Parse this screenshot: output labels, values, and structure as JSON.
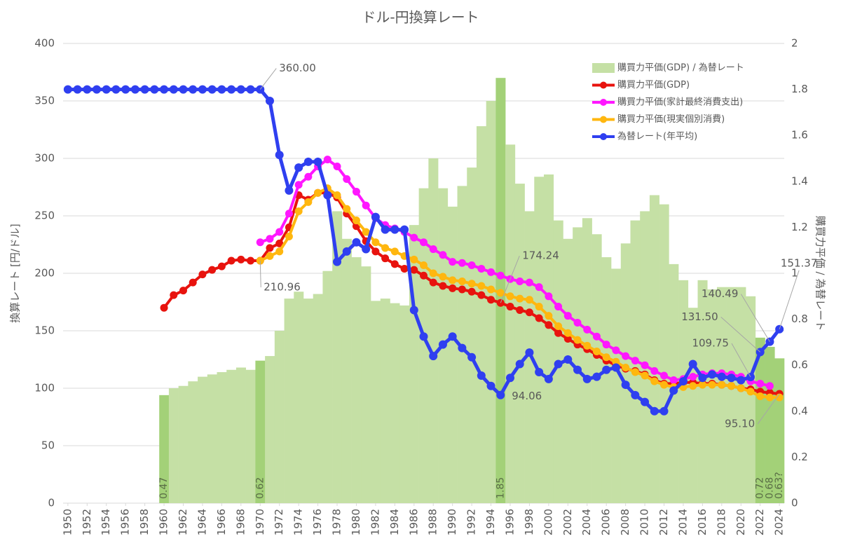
{
  "chart_data": {
    "type": "combo",
    "title": "ドル-円換算レート",
    "y_label": "換算レート [円/ドル]",
    "y2_label": "購買力平価 / 為替レート",
    "x": [
      1950,
      1951,
      1952,
      1953,
      1954,
      1955,
      1956,
      1957,
      1958,
      1959,
      1960,
      1961,
      1962,
      1963,
      1964,
      1965,
      1966,
      1967,
      1968,
      1969,
      1970,
      1971,
      1972,
      1973,
      1974,
      1975,
      1976,
      1977,
      1978,
      1979,
      1980,
      1981,
      1982,
      1983,
      1984,
      1985,
      1986,
      1987,
      1988,
      1989,
      1990,
      1991,
      1992,
      1993,
      1994,
      1995,
      1996,
      1997,
      1998,
      1999,
      2000,
      2001,
      2002,
      2003,
      2004,
      2005,
      2006,
      2007,
      2008,
      2009,
      2010,
      2011,
      2012,
      2013,
      2014,
      2015,
      2016,
      2017,
      2018,
      2019,
      2020,
      2021,
      2022,
      2023,
      2024
    ],
    "xlim": [
      1949.5,
      2024.5
    ],
    "xticks": [
      1950,
      1952,
      1954,
      1956,
      1958,
      1960,
      1962,
      1964,
      1966,
      1968,
      1970,
      1972,
      1974,
      1976,
      1978,
      1980,
      1982,
      1984,
      1986,
      1988,
      1990,
      1992,
      1994,
      1996,
      1998,
      2000,
      2002,
      2004,
      2006,
      2008,
      2010,
      2012,
      2014,
      2016,
      2018,
      2020,
      2022,
      2024
    ],
    "ylim": [
      0,
      400
    ],
    "yticks": [
      0,
      50,
      100,
      150,
      200,
      250,
      300,
      350,
      400
    ],
    "y2lim": [
      0,
      2
    ],
    "y2ticks": [
      0,
      0.2,
      0.4,
      0.6,
      0.8,
      1,
      1.2,
      1.4,
      1.6,
      1.8,
      2
    ],
    "grid": true,
    "legend": "top-right",
    "series": [
      {
        "name": "購買力平価(GDP) / 為替レート",
        "type": "bar",
        "axis": "y2",
        "color": "#c5e0a5",
        "highlight_color": "#a3d178",
        "values": [
          null,
          null,
          null,
          null,
          null,
          null,
          null,
          null,
          null,
          null,
          0.47,
          0.5,
          0.51,
          0.53,
          0.55,
          0.56,
          0.57,
          0.58,
          0.59,
          0.58,
          0.62,
          0.64,
          0.75,
          0.89,
          0.92,
          0.89,
          0.91,
          1.01,
          1.27,
          1.15,
          1.07,
          1.03,
          0.88,
          0.89,
          0.87,
          0.86,
          1.21,
          1.37,
          1.5,
          1.37,
          1.29,
          1.38,
          1.46,
          1.64,
          1.75,
          1.85,
          1.56,
          1.39,
          1.27,
          1.42,
          1.43,
          1.23,
          1.15,
          1.2,
          1.24,
          1.17,
          1.07,
          1.02,
          1.13,
          1.23,
          1.27,
          1.34,
          1.3,
          1.04,
          0.97,
          0.85,
          0.97,
          0.93,
          0.94,
          0.94,
          0.94,
          0.9,
          0.72,
          0.68,
          0.63
        ],
        "value_labels": [
          null,
          null,
          null,
          null,
          null,
          null,
          null,
          null,
          null,
          null,
          "0.47",
          null,
          null,
          null,
          null,
          null,
          null,
          null,
          null,
          null,
          "0.62",
          null,
          null,
          null,
          null,
          null,
          null,
          null,
          null,
          null,
          null,
          null,
          null,
          null,
          null,
          null,
          null,
          null,
          null,
          null,
          null,
          null,
          null,
          null,
          null,
          "1.85",
          null,
          null,
          null,
          null,
          null,
          null,
          null,
          null,
          null,
          null,
          null,
          null,
          null,
          null,
          null,
          null,
          null,
          null,
          null,
          null,
          null,
          null,
          null,
          null,
          null,
          null,
          "0.72",
          "0.68",
          "0.63?"
        ]
      },
      {
        "name": "購買力平価(GDP)",
        "type": "line",
        "color": "#e8130e",
        "values": [
          null,
          null,
          null,
          null,
          null,
          null,
          null,
          null,
          null,
          null,
          170,
          181,
          185,
          192,
          199,
          203,
          206,
          211,
          212,
          211,
          210.96,
          222,
          226,
          240,
          268,
          264,
          270,
          270,
          266,
          252,
          241,
          228,
          219,
          213,
          208,
          204,
          203,
          198,
          192,
          189,
          187,
          186,
          184,
          181,
          177,
          174.24,
          171,
          168,
          166,
          161,
          155,
          148,
          143,
          138,
          134,
          129,
          124,
          120,
          117,
          115,
          112,
          107,
          104,
          104,
          105,
          105,
          104,
          104,
          103,
          102,
          100,
          99,
          97,
          96,
          95.1
        ],
        "value_labels": [
          null,
          null,
          null,
          null,
          null,
          null,
          null,
          null,
          null,
          null,
          null,
          null,
          null,
          null,
          null,
          null,
          null,
          null,
          null,
          null,
          "210.96",
          null,
          null,
          null,
          null,
          null,
          null,
          null,
          null,
          null,
          null,
          null,
          null,
          null,
          null,
          null,
          null,
          null,
          null,
          null,
          null,
          null,
          null,
          null,
          null,
          "174.24",
          null,
          null,
          null,
          null,
          null,
          null,
          null,
          null,
          null,
          null,
          null,
          null,
          null,
          null,
          null,
          null,
          null,
          null,
          null,
          null,
          null,
          null,
          null,
          null,
          null,
          null,
          null,
          null,
          "95.10"
        ]
      },
      {
        "name": "購買力平価(家計最終消費支出)",
        "type": "line",
        "color": "#ff17ff",
        "values": [
          null,
          null,
          null,
          null,
          null,
          null,
          null,
          null,
          null,
          null,
          null,
          null,
          null,
          null,
          null,
          null,
          null,
          null,
          null,
          null,
          227,
          230,
          236,
          252,
          277,
          284,
          293,
          299,
          293,
          282,
          271,
          259,
          248,
          242,
          239,
          236,
          231,
          227,
          221,
          216,
          210,
          209,
          207,
          204,
          201,
          198,
          195,
          193,
          192,
          188,
          180,
          171,
          163,
          157,
          151,
          145,
          138,
          133,
          128,
          124,
          120,
          115,
          111,
          107,
          108,
          110,
          112,
          113,
          113,
          112,
          110,
          106,
          104,
          102,
          null
        ]
      },
      {
        "name": "購買力平価(現実個別消費)",
        "type": "line",
        "color": "#ffb70f",
        "values": [
          null,
          null,
          null,
          null,
          null,
          null,
          null,
          null,
          null,
          null,
          null,
          null,
          null,
          null,
          null,
          null,
          null,
          null,
          null,
          null,
          211,
          215,
          219,
          232,
          254,
          262,
          270,
          274,
          268,
          256,
          246,
          236,
          227,
          222,
          219,
          215,
          212,
          207,
          200,
          197,
          194,
          193,
          191,
          189,
          186,
          183,
          180,
          178,
          177,
          171,
          163,
          154,
          148,
          142,
          137,
          132,
          127,
          123,
          118,
          114,
          111,
          106,
          103,
          101,
          101,
          102,
          103,
          103,
          103,
          102,
          100,
          97,
          93,
          92,
          92
        ]
      },
      {
        "name": "為替レート(年平均)",
        "type": "line",
        "color": "#2f3ff0",
        "values": [
          360,
          360,
          360,
          360,
          360,
          360,
          360,
          360,
          360,
          360,
          360,
          360,
          360,
          360,
          360,
          360,
          360,
          360,
          360,
          360,
          360,
          350,
          303,
          272,
          292,
          297,
          297,
          268,
          210,
          219,
          227,
          221,
          249,
          238,
          238,
          238,
          168,
          145,
          128,
          138,
          145,
          135,
          127,
          111,
          102,
          94.06,
          109,
          121,
          131,
          114,
          108,
          121,
          125,
          116,
          108,
          110,
          116,
          118,
          103,
          94,
          88,
          80,
          80,
          98,
          106,
          121,
          109,
          112,
          110,
          109,
          107,
          109.75,
          131.5,
          140.49,
          151.37
        ],
        "value_labels": [
          null,
          null,
          null,
          null,
          null,
          null,
          null,
          null,
          null,
          null,
          null,
          null,
          null,
          null,
          null,
          null,
          null,
          null,
          null,
          null,
          "360.00",
          null,
          null,
          null,
          null,
          null,
          null,
          null,
          null,
          null,
          null,
          null,
          null,
          null,
          null,
          null,
          null,
          null,
          null,
          null,
          null,
          null,
          null,
          null,
          null,
          "94.06",
          null,
          null,
          null,
          null,
          null,
          null,
          null,
          null,
          null,
          null,
          null,
          null,
          null,
          null,
          null,
          null,
          null,
          null,
          null,
          null,
          null,
          null,
          null,
          null,
          null,
          "109.75",
          "131.50",
          "140.49",
          "151.37"
        ]
      }
    ]
  }
}
